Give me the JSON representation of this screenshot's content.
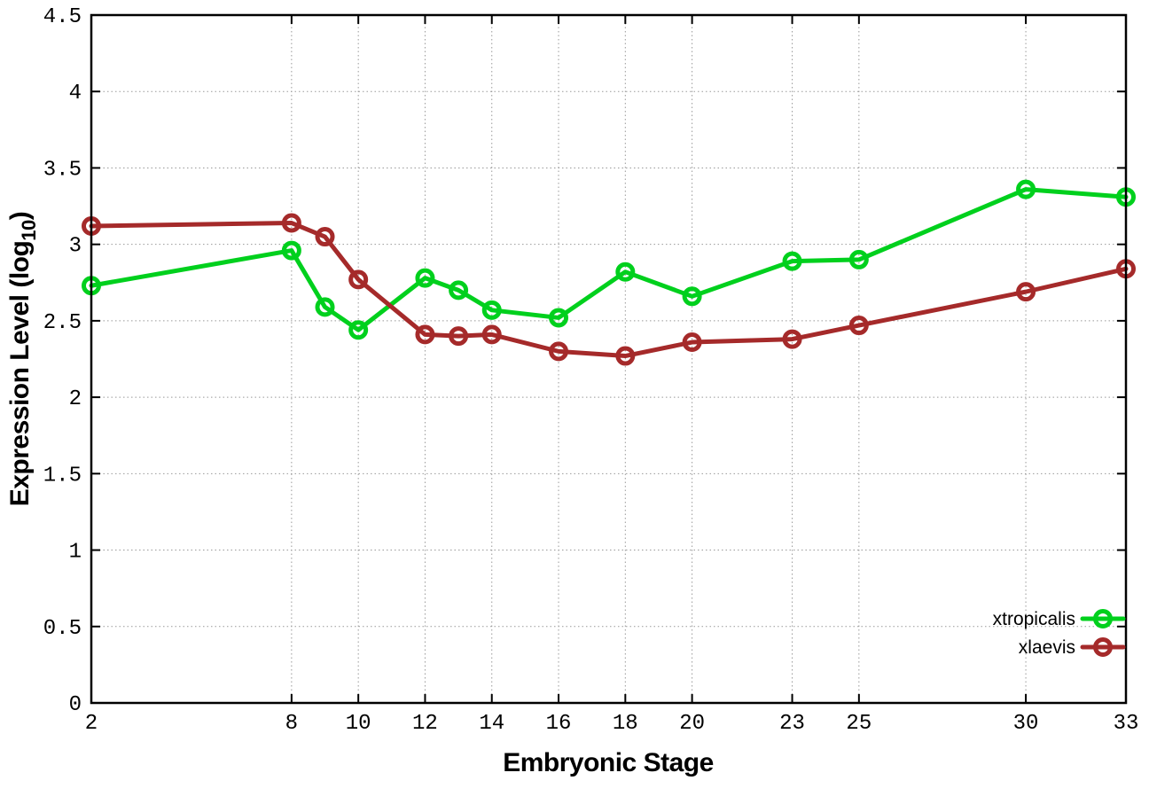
{
  "chart_data": {
    "type": "line",
    "title": "",
    "xlabel": "Embryonic Stage",
    "ylabel": {
      "prefix": "Expression Level (log",
      "subscript": "10",
      "suffix": ")"
    },
    "xlim": [
      2,
      33
    ],
    "ylim": [
      0,
      4.5
    ],
    "grid": true,
    "legend_position": "bottom-right-inside",
    "x": [
      2,
      8,
      9,
      10,
      12,
      13,
      14,
      16,
      18,
      20,
      23,
      25,
      30,
      33
    ],
    "xticks": {
      "values": [
        2,
        8,
        10,
        12,
        14,
        16,
        18,
        20,
        23,
        25,
        30,
        33
      ],
      "labels": [
        "2",
        "8",
        "10",
        "12",
        "14",
        "16",
        "18",
        "20",
        "23",
        "25",
        "30",
        "33"
      ]
    },
    "yticks": {
      "values": [
        0,
        0.5,
        1,
        1.5,
        2,
        2.5,
        3,
        3.5,
        4,
        4.5
      ],
      "labels": [
        "0",
        "0.5",
        "1",
        "1.5",
        "2",
        "2.5",
        "3",
        "3.5",
        "4",
        "4.5"
      ]
    },
    "series": [
      {
        "name": "xtropicalis",
        "color": "#00d01d",
        "marker": "open-circle",
        "values": [
          2.73,
          2.96,
          2.59,
          2.44,
          2.78,
          2.7,
          2.57,
          2.52,
          2.82,
          2.66,
          2.89,
          2.9,
          3.36,
          3.31
        ]
      },
      {
        "name": "xlaevis",
        "color": "#a52a2a",
        "marker": "open-circle",
        "values": [
          3.12,
          3.14,
          3.05,
          2.77,
          2.41,
          2.4,
          2.41,
          2.3,
          2.27,
          2.36,
          2.38,
          2.47,
          2.69,
          2.84
        ]
      }
    ],
    "colors": {
      "grid": "#999999",
      "axis": "#000000",
      "background": "#ffffff"
    }
  }
}
